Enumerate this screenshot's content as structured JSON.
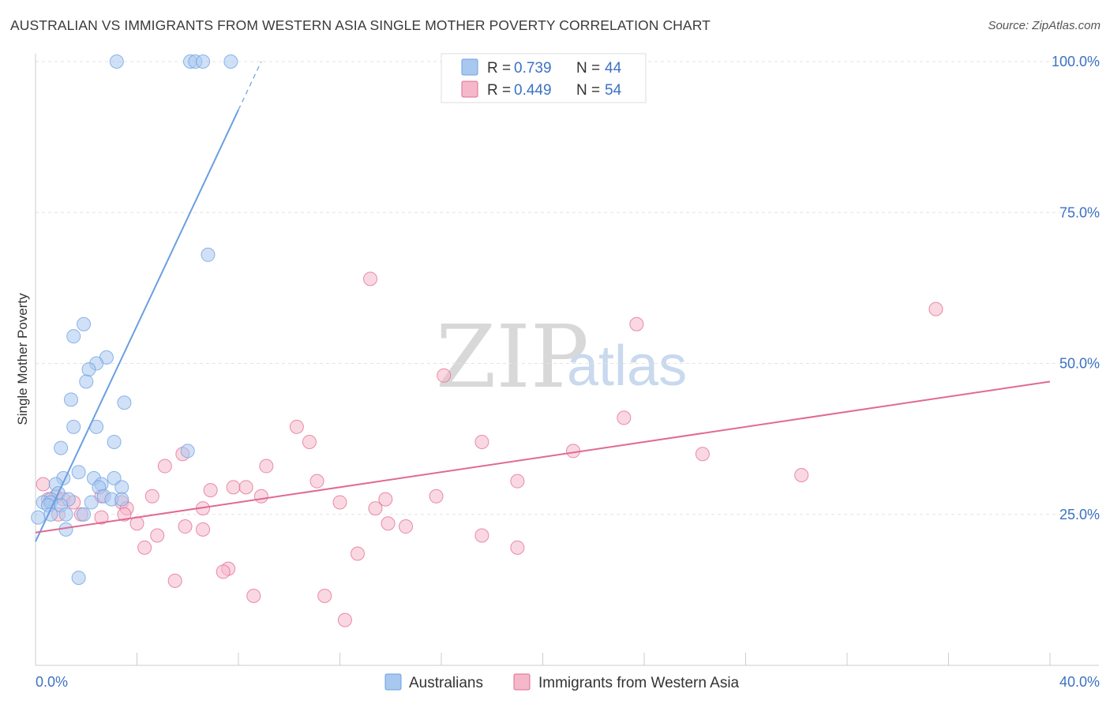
{
  "header": {
    "title": "AUSTRALIAN VS IMMIGRANTS FROM WESTERN ASIA SINGLE MOTHER POVERTY CORRELATION CHART",
    "source": "Source: ZipAtlas.com"
  },
  "watermark": {
    "zip": "ZIP",
    "atlas": "atlas"
  },
  "legend": {
    "r_label": "R =",
    "n_label": "N =",
    "rows": [
      {
        "r": "0.739",
        "n": "44",
        "color": "#a9c8f0"
      },
      {
        "r": "0.449",
        "n": "54",
        "color": "#f5b8cb"
      }
    ]
  },
  "bottom_legend": [
    {
      "label": "Australians",
      "color": "#a9c8f0"
    },
    {
      "label": "Immigrants from Western Asia",
      "color": "#f5b8cb"
    }
  ],
  "chart_data": {
    "type": "scatter",
    "title": "AUSTRALIAN VS IMMIGRANTS FROM WESTERN ASIA SINGLE MOTHER POVERTY CORRELATION CHART",
    "xlabel": "",
    "ylabel": "Single Mother Poverty",
    "xlim": [
      0,
      40
    ],
    "ylim": [
      0,
      100
    ],
    "x_tick_labels": [
      "0.0%",
      "40.0%"
    ],
    "y_ticks": [
      25,
      50,
      75,
      100
    ],
    "y_tick_labels": [
      "25.0%",
      "50.0%",
      "75.0%",
      "100.0%"
    ],
    "grid": true,
    "legend_position": "top-center",
    "series": [
      {
        "name": "Australians",
        "color": "#6a9fe0",
        "fill": "#a9c8f0",
        "trend": {
          "x1": 0,
          "y1": 20.5,
          "x2": 8,
          "y2": 92,
          "dash_to_x": 8.9,
          "dash_to_y": 100
        },
        "points": [
          [
            3.2,
            100
          ],
          [
            6.1,
            100
          ],
          [
            6.3,
            100
          ],
          [
            6.6,
            100
          ],
          [
            7.7,
            100
          ],
          [
            6.8,
            68
          ],
          [
            1.9,
            56.5
          ],
          [
            1.5,
            54.5
          ],
          [
            2.8,
            51
          ],
          [
            2.4,
            50
          ],
          [
            2.1,
            49
          ],
          [
            2.0,
            47
          ],
          [
            1.4,
            44
          ],
          [
            3.5,
            43.5
          ],
          [
            1.5,
            39.5
          ],
          [
            2.4,
            39.5
          ],
          [
            3.1,
            37
          ],
          [
            1.0,
            36
          ],
          [
            6.0,
            35.5
          ],
          [
            1.7,
            32
          ],
          [
            1.1,
            31
          ],
          [
            2.3,
            31
          ],
          [
            3.1,
            31
          ],
          [
            0.8,
            30
          ],
          [
            2.6,
            30
          ],
          [
            3.4,
            29.5
          ],
          [
            2.5,
            29.5
          ],
          [
            0.9,
            28.5
          ],
          [
            2.7,
            28
          ],
          [
            0.6,
            27.5
          ],
          [
            1.3,
            27.5
          ],
          [
            3.0,
            27.5
          ],
          [
            3.4,
            27.5
          ],
          [
            0.3,
            27
          ],
          [
            2.2,
            27
          ],
          [
            0.6,
            27
          ],
          [
            1.0,
            26.5
          ],
          [
            0.5,
            26.5
          ],
          [
            1.2,
            25
          ],
          [
            0.6,
            25
          ],
          [
            1.9,
            25
          ],
          [
            0.1,
            24.5
          ],
          [
            1.2,
            22.5
          ],
          [
            1.7,
            14.5
          ]
        ]
      },
      {
        "name": "Immigrants from Western Asia",
        "color": "#e06a93",
        "fill": "#f5b8cb",
        "trend": {
          "x1": 0,
          "y1": 22,
          "x2": 40,
          "y2": 47
        },
        "points": [
          [
            13.2,
            64
          ],
          [
            35.5,
            59
          ],
          [
            23.7,
            56.5
          ],
          [
            16.1,
            48
          ],
          [
            23.2,
            41
          ],
          [
            10.3,
            39.5
          ],
          [
            10.8,
            37
          ],
          [
            17.6,
            37
          ],
          [
            21.2,
            35.5
          ],
          [
            26.3,
            35
          ],
          [
            5.8,
            35
          ],
          [
            5.1,
            33
          ],
          [
            9.1,
            33
          ],
          [
            30.2,
            31.5
          ],
          [
            11.1,
            30.5
          ],
          [
            19.0,
            30.5
          ],
          [
            7.8,
            29.5
          ],
          [
            8.3,
            29.5
          ],
          [
            6.9,
            29
          ],
          [
            8.9,
            28
          ],
          [
            15.8,
            28
          ],
          [
            4.6,
            28
          ],
          [
            2.6,
            28
          ],
          [
            0.8,
            28
          ],
          [
            1.1,
            27.5
          ],
          [
            0.5,
            27.5
          ],
          [
            13.8,
            27.5
          ],
          [
            12.0,
            27
          ],
          [
            3.4,
            27
          ],
          [
            1.5,
            27
          ],
          [
            3.6,
            26
          ],
          [
            13.4,
            26
          ],
          [
            6.6,
            26
          ],
          [
            0.3,
            30
          ],
          [
            0.9,
            25
          ],
          [
            1.8,
            25
          ],
          [
            2.6,
            24.5
          ],
          [
            3.5,
            25
          ],
          [
            5.9,
            23
          ],
          [
            4.0,
            23.5
          ],
          [
            13.9,
            23.5
          ],
          [
            14.6,
            23
          ],
          [
            6.6,
            22.5
          ],
          [
            4.8,
            21.5
          ],
          [
            17.6,
            21.5
          ],
          [
            19.0,
            19.5
          ],
          [
            4.3,
            19.5
          ],
          [
            12.7,
            18.5
          ],
          [
            7.6,
            16
          ],
          [
            7.4,
            15.5
          ],
          [
            5.5,
            14
          ],
          [
            8.6,
            11.5
          ],
          [
            11.4,
            11.5
          ],
          [
            12.2,
            7.5
          ]
        ]
      }
    ]
  }
}
